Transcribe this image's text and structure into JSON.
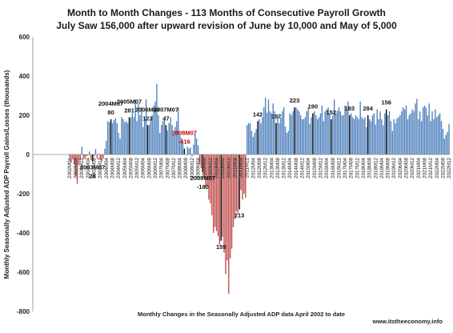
{
  "chart_data": {
    "type": "bar",
    "title": "Month to Month Changes  - 113 Months of Consecutive Payroll Growth",
    "subtitle": "July  Saw 156,000 after upward revision of June by 10,000 and May of 5,000",
    "ylabel": "Monthly Seasonally Adjusted ADP Payroll Gains/Losses (thousands)",
    "xlabel": "Monthly Changes in the Seasonally Adjusted ADP data April 2002 to date",
    "source": "www.itstheeconomy.info",
    "ylim": [
      -800,
      600
    ],
    "yticks": [
      -800,
      -600,
      -400,
      -200,
      0,
      200,
      400,
      600
    ],
    "grid": false,
    "colors": {
      "positive": "#4f81bd",
      "negative": "#c0504d",
      "highlight": "#000000"
    },
    "start": "2002M04",
    "xtick_step": 4,
    "values": [
      -15,
      -40,
      -25,
      -50,
      -110,
      -150,
      -55,
      -30,
      40,
      -20,
      -25,
      -10,
      -5,
      15,
      -30,
      -35,
      -10,
      28,
      -20,
      5,
      -25,
      -35,
      -20,
      30,
      70,
      170,
      165,
      180,
      160,
      175,
      185,
      160,
      110,
      80,
      190,
      180,
      165,
      170,
      160,
      190,
      190,
      210,
      190,
      280,
      170,
      260,
      200,
      240,
      140,
      190,
      281,
      150,
      150,
      180,
      200,
      250,
      270,
      360,
      200,
      110,
      150,
      170,
      180,
      150,
      123,
      160,
      190,
      150,
      100,
      140,
      170,
      240,
      100,
      85,
      60,
      30,
      0,
      40,
      30,
      35,
      -10,
      50,
      100,
      80,
      47,
      -50,
      -70,
      -90,
      -120,
      -170,
      -160,
      -230,
      -250,
      -310,
      -400,
      -370,
      -390,
      -416,
      -460,
      -440,
      -420,
      -500,
      -610,
      -540,
      -710,
      -530,
      -480,
      -370,
      -330,
      -290,
      -300,
      -280,
      -180,
      -230,
      -200,
      -220,
      150,
      160,
      159,
      120,
      90,
      110,
      130,
      170,
      180,
      160,
      190,
      240,
      290,
      213,
      280,
      220,
      210,
      260,
      220,
      160,
      200,
      160,
      190,
      220,
      240,
      142,
      110,
      120,
      210,
      200,
      220,
      240,
      240,
      230,
      220,
      200,
      180,
      180,
      190,
      220,
      240,
      157,
      190,
      210,
      220,
      200,
      180,
      190,
      210,
      250,
      170,
      220,
      230,
      240,
      210,
      180,
      200,
      280,
      210,
      223,
      240,
      220,
      200,
      200,
      250,
      230,
      270,
      200,
      210,
      190,
      180,
      200,
      190,
      180,
      270,
      190,
      180,
      190,
      140,
      200,
      180,
      170,
      200,
      210,
      152,
      230,
      180,
      220,
      180,
      150,
      210,
      230,
      200,
      220,
      170,
      120,
      180,
      160,
      183,
      190,
      200,
      220,
      240,
      230,
      250,
      180,
      200,
      210,
      230,
      220,
      260,
      284,
      180,
      220,
      170,
      240,
      250,
      240,
      200,
      260,
      170,
      220,
      180,
      230,
      190,
      200,
      210,
      170,
      130,
      80,
      100,
      115,
      156
    ],
    "highlights": [
      "2003M07",
      "2004M07",
      "2005M07",
      "2006M07",
      "2007M07",
      "2008M07",
      "2009M07",
      "2010M07",
      "2011M07",
      "2012M07",
      "2013M07",
      "2014M07",
      "2015M07",
      "2016M07",
      "2017M07",
      "2018M07",
      "2019M07"
    ],
    "annotations": [
      {
        "label": "2003M07",
        "month": "2003M07",
        "color": "black"
      },
      {
        "label": "28",
        "month": "2003M07",
        "color": "black"
      },
      {
        "label": "2004M07",
        "month": "2004M07",
        "color": "black"
      },
      {
        "label": "80",
        "month": "2004M07",
        "color": "black"
      },
      {
        "label": "2005M07",
        "month": "2005M07",
        "color": "black"
      },
      {
        "label": "281",
        "month": "2005M07",
        "color": "black"
      },
      {
        "label": "2006M07",
        "month": "2006M07",
        "color": "black"
      },
      {
        "label": "123",
        "month": "2006M07",
        "color": "black"
      },
      {
        "label": "2007M07",
        "month": "2007M07",
        "color": "black"
      },
      {
        "label": "47",
        "month": "2007M07",
        "color": "black"
      },
      {
        "label": "2008M07",
        "month": "2008M07",
        "color": "red"
      },
      {
        "label": "-416",
        "month": "2008M07",
        "color": "red"
      },
      {
        "label": "2009M07",
        "month": "2009M07",
        "color": "black"
      },
      {
        "label": "-180",
        "month": "2009M07",
        "color": "black"
      },
      {
        "label": "159",
        "month": "2010M07",
        "color": "black"
      },
      {
        "label": "213",
        "month": "2011M07",
        "color": "black"
      },
      {
        "label": "142",
        "month": "2012M07",
        "color": "black"
      },
      {
        "label": "157",
        "month": "2013M07",
        "color": "black"
      },
      {
        "label": "223",
        "month": "2014M07",
        "color": "black"
      },
      {
        "label": "190",
        "month": "2015M07",
        "color": "black"
      },
      {
        "label": "152",
        "month": "2016M07",
        "color": "black"
      },
      {
        "label": "183",
        "month": "2017M07",
        "color": "black"
      },
      {
        "label": "284",
        "month": "2018M07",
        "color": "black"
      },
      {
        "label": "156",
        "month": "2019M07",
        "color": "black"
      }
    ]
  }
}
